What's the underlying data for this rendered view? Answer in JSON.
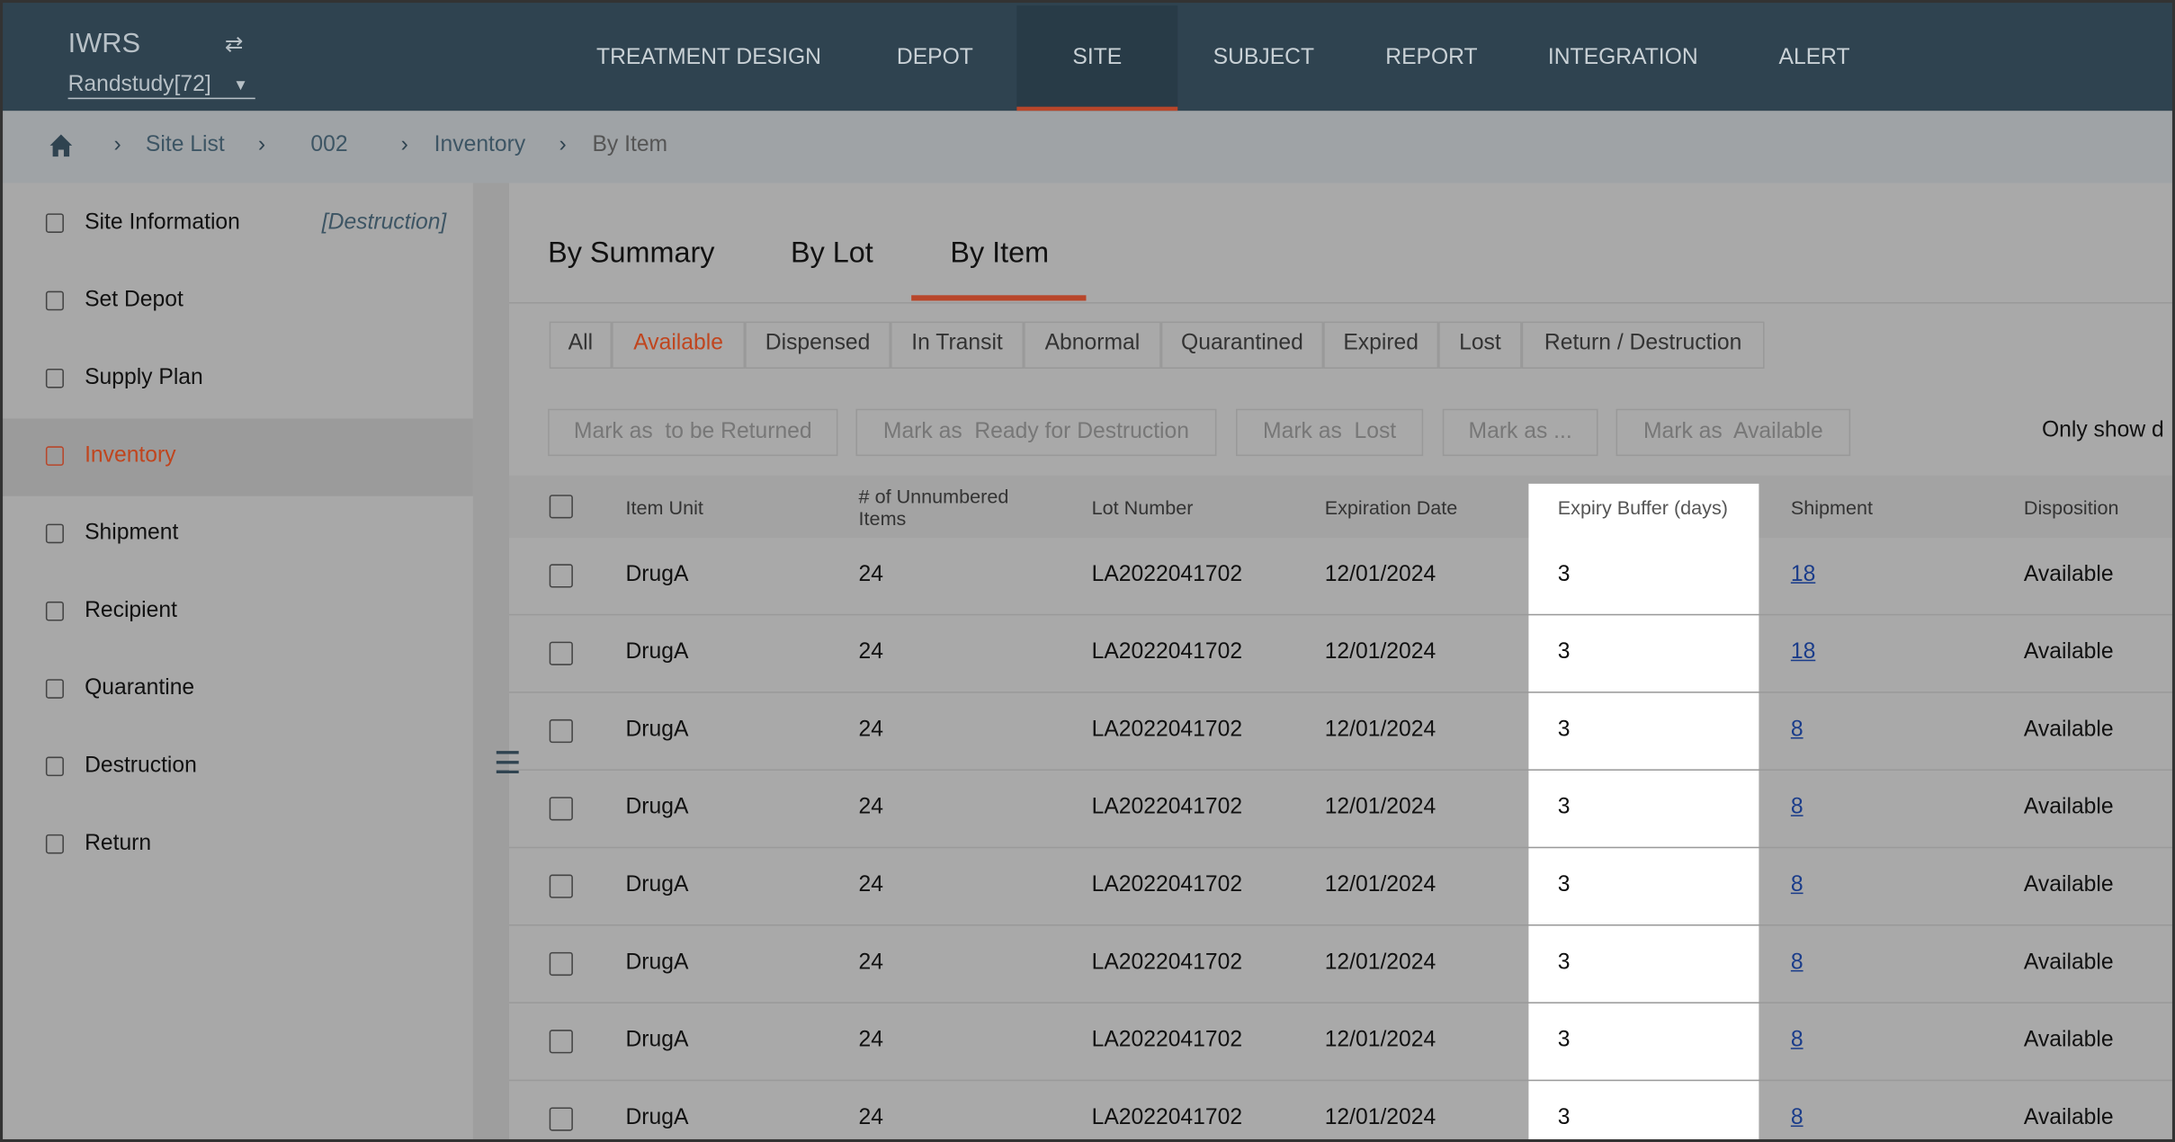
{
  "header": {
    "app": "IWRS",
    "study": "Randstudy[72]",
    "nav": [
      "TREATMENT DESIGN",
      "DEPOT",
      "SITE",
      "SUBJECT",
      "REPORT",
      "INTEGRATION",
      "ALERT"
    ]
  },
  "breadcrumb": [
    "Site List",
    "002",
    "Inventory",
    "By Item"
  ],
  "sidebar": {
    "tag": "[Destruction]",
    "items": [
      "Site Information",
      "Set Depot",
      "Supply Plan",
      "Inventory",
      "Shipment",
      "Recipient",
      "Quarantine",
      "Destruction",
      "Return"
    ]
  },
  "tabs": [
    "By Summary",
    "By Lot",
    "By Item"
  ],
  "filters": [
    "All",
    "Available",
    "Dispensed",
    "In Transit",
    "Abnormal",
    "Quarantined",
    "Expired",
    "Lost",
    "Return / Destruction"
  ],
  "actions": [
    "Mark as  to be Returned",
    "Mark as  Ready for Destruction",
    "Mark as  Lost",
    "Mark as ...",
    "Mark as  Available"
  ],
  "only_show": "Only show d",
  "table": {
    "columns": [
      "Item Unit",
      "# of Unnumbered Items",
      "Lot Number",
      "Expiration Date",
      "Expiry Buffer (days)",
      "Shipment",
      "Disposition"
    ],
    "rows": [
      [
        "DrugA",
        "24",
        "LA2022041702",
        "12/01/2024",
        "3",
        "18",
        "Available"
      ],
      [
        "DrugA",
        "24",
        "LA2022041702",
        "12/01/2024",
        "3",
        "18",
        "Available"
      ],
      [
        "DrugA",
        "24",
        "LA2022041702",
        "12/01/2024",
        "3",
        "8",
        "Available"
      ],
      [
        "DrugA",
        "24",
        "LA2022041702",
        "12/01/2024",
        "3",
        "8",
        "Available"
      ],
      [
        "DrugA",
        "24",
        "LA2022041702",
        "12/01/2024",
        "3",
        "8",
        "Available"
      ],
      [
        "DrugA",
        "24",
        "LA2022041702",
        "12/01/2024",
        "3",
        "8",
        "Available"
      ],
      [
        "DrugA",
        "24",
        "LA2022041702",
        "12/01/2024",
        "3",
        "8",
        "Available"
      ],
      [
        "DrugA",
        "24",
        "LA2022041702",
        "12/01/2024",
        "3",
        "8",
        "Available"
      ]
    ]
  }
}
